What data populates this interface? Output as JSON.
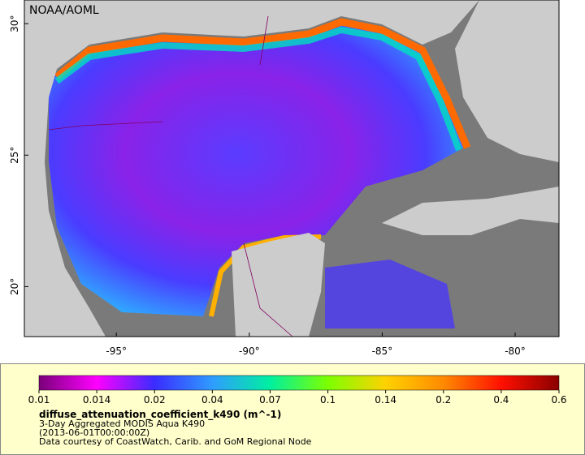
{
  "map": {
    "credit": "NOAA/AOML",
    "xlim": [
      -98.46,
      -78.35
    ],
    "ylim": [
      18.1,
      30.9
    ],
    "xticks": [
      {
        "value": -95,
        "label": "-95°"
      },
      {
        "value": -90,
        "label": "-90°"
      },
      {
        "value": -85,
        "label": "-85°"
      },
      {
        "value": -80,
        "label": "-80°"
      }
    ],
    "yticks": [
      {
        "value": 20,
        "label": "20°"
      },
      {
        "value": 25,
        "label": "25°"
      },
      {
        "value": 30,
        "label": "30°"
      }
    ]
  },
  "legend": {
    "ticks": [
      0.01,
      0.014,
      0.02,
      0.04,
      0.07,
      0.1,
      0.14,
      0.2,
      0.4,
      0.6
    ],
    "colors": [
      "#7a007a",
      "#ff00ff",
      "#3a2cff",
      "#2f9cff",
      "#00f0a0",
      "#7cff00",
      "#ffd200",
      "#ff8a00",
      "#ff1000",
      "#8a0000"
    ],
    "title": "diffuse_attenuation_coefficient_k490 (m^-1)",
    "lines": [
      "3-Day Aggregated MODIS Aqua K490",
      "(2013-06-01T00:00:00Z)",
      "Data courtesy of CoastWatch, Carib. and GoM Regional Node"
    ]
  }
}
